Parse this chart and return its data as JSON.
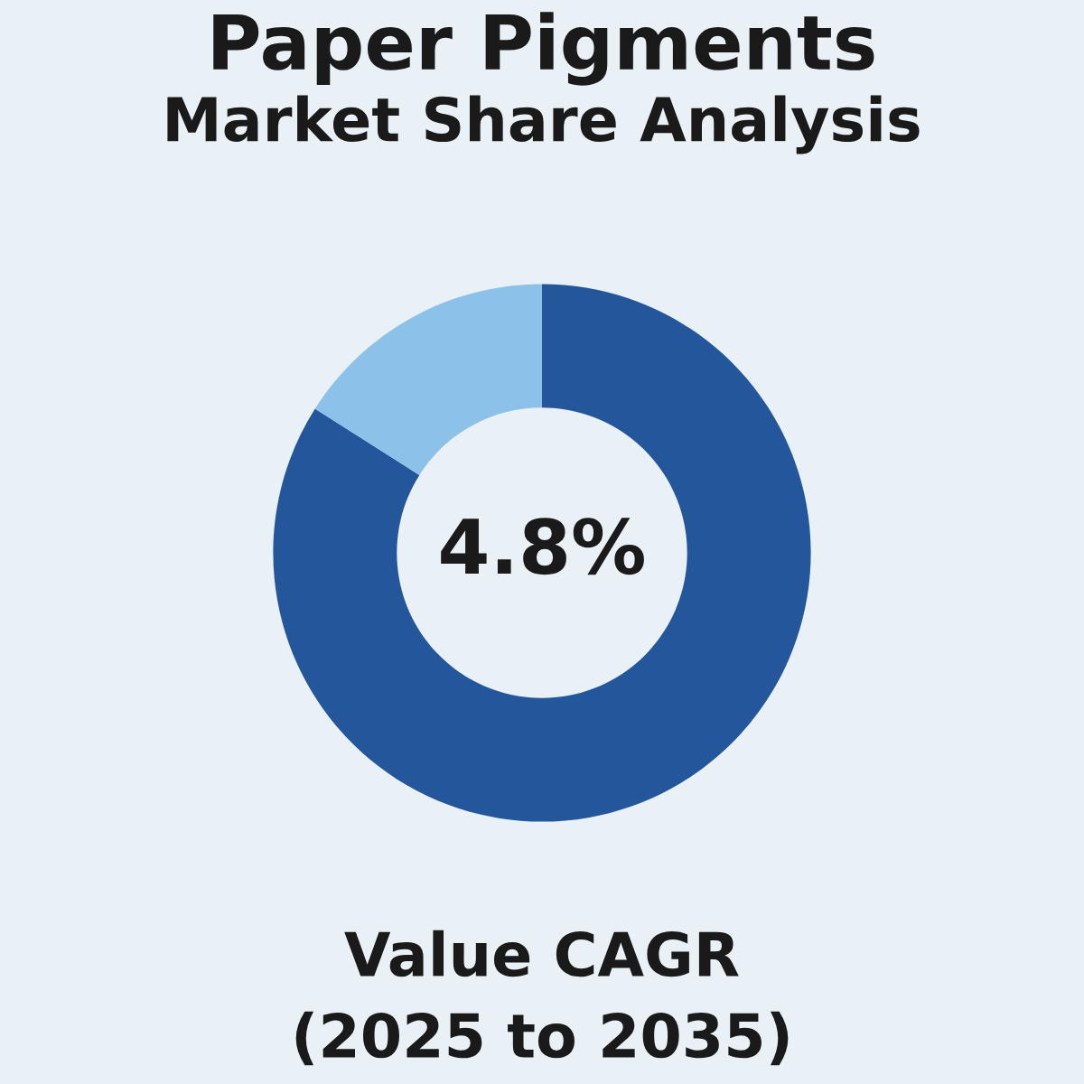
{
  "chart_data": {
    "type": "donut",
    "title": "Paper Pigments",
    "subtitle": "Market Share Analysis",
    "categories": [
      null,
      null
    ],
    "values": [
      84,
      16
    ],
    "colors": [
      "#23569b",
      "#8cc2ea"
    ],
    "annotations": [
      "4.8%",
      "Value CAGR",
      "(2025 to 2035)"
    ],
    "legend": false
  }
}
